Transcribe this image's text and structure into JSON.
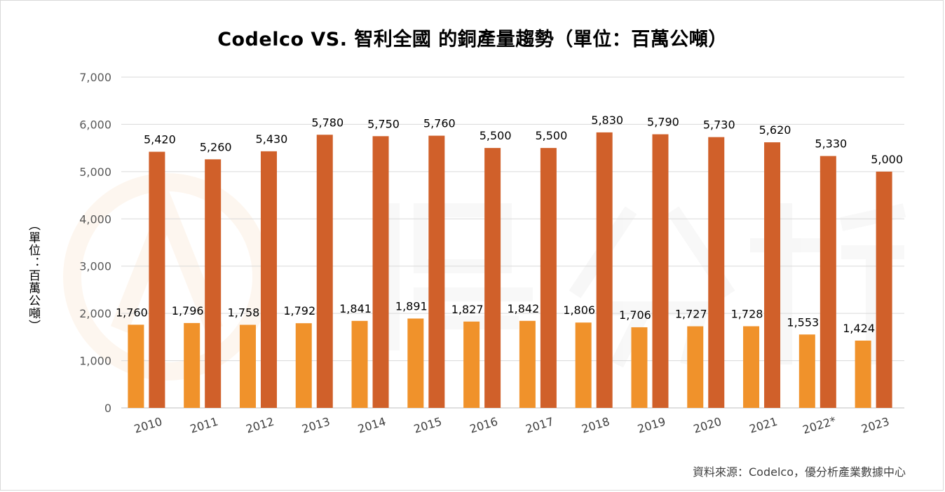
{
  "chart_data": {
    "type": "bar",
    "title": "Codelco VS. 智利全國 的銅產量趨勢（單位：百萬公噸）",
    "ylabel": "（單位：百萬公噸）",
    "xlabel": "",
    "categories": [
      "2010",
      "2011",
      "2012",
      "2013",
      "2014",
      "2015",
      "2016",
      "2017",
      "2018",
      "2019",
      "2020",
      "2021",
      "2022*",
      "2023"
    ],
    "series": [
      {
        "values": [
          1760,
          1796,
          1758,
          1792,
          1841,
          1891,
          1827,
          1842,
          1806,
          1706,
          1727,
          1728,
          1553,
          1424
        ],
        "color": "#f0922b"
      },
      {
        "values": [
          5420,
          5260,
          5430,
          5780,
          5750,
          5760,
          5500,
          5500,
          5830,
          5790,
          5730,
          5620,
          5330,
          5000
        ],
        "color": "#d0602a"
      }
    ],
    "ylim": [
      0,
      7000
    ],
    "yticks": [
      "0",
      "1,000",
      "2,000",
      "3,000",
      "4,000",
      "5,000",
      "6,000",
      "7,000"
    ],
    "grid": true,
    "legend": "none"
  },
  "source": "資料來源：Codelco，優分析產業數據中心"
}
